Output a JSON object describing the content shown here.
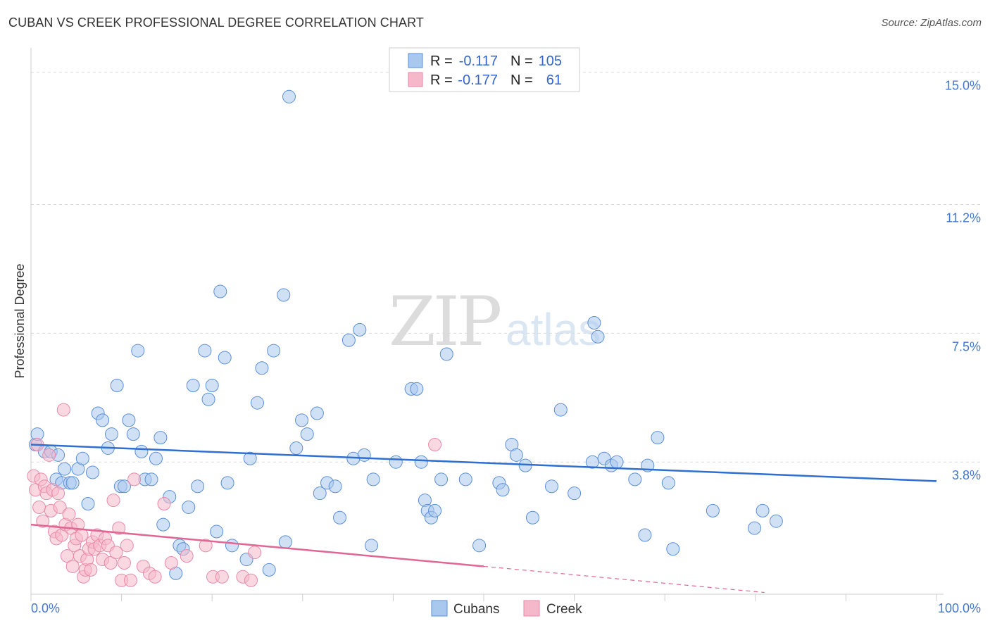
{
  "title": "CUBAN VS CREEK PROFESSIONAL DEGREE CORRELATION CHART",
  "source": "Source: ZipAtlas.com",
  "watermark": {
    "zip": "ZIP",
    "atlas": "atlas"
  },
  "colors": {
    "cubans_fill": "#a9c8ee",
    "cubans_stroke": "#5b8fd6",
    "cubans_line": "#2e6fd1",
    "creek_fill": "#f5b8cb",
    "creek_stroke": "#e889a8",
    "creek_line": "#e06693",
    "axis_label": "#4477cc",
    "grid": "#d9d9d9"
  },
  "legend": {
    "cubans": {
      "r_label": "R =",
      "r_value": "-0.117",
      "n_label": "N =",
      "n_value": "105"
    },
    "creek": {
      "r_label": "R =",
      "r_value": "-0.177",
      "n_label": "N =",
      "n_value": "61"
    }
  },
  "bottom_legend": {
    "cubans": "Cubans",
    "creek": "Creek"
  },
  "chart_data": {
    "type": "scatter",
    "title": "CUBAN VS CREEK PROFESSIONAL DEGREE CORRELATION CHART",
    "xlabel": "",
    "ylabel": "Professional Degree",
    "xlim": [
      0,
      100
    ],
    "ylim": [
      0,
      15.5
    ],
    "x_tick_labels": [
      "0.0%",
      "100.0%"
    ],
    "y_ticks": [
      3.8,
      7.5,
      11.2,
      15.0
    ],
    "y_tick_labels": [
      "3.8%",
      "7.5%",
      "11.2%",
      "15.0%"
    ],
    "series": [
      {
        "name": "Cubans",
        "trend": {
          "x": [
            0,
            100
          ],
          "y": [
            4.3,
            3.25
          ]
        },
        "points": [
          [
            0.5,
            4.3
          ],
          [
            0.7,
            4.6
          ],
          [
            1.5,
            4.1
          ],
          [
            2.2,
            4.1
          ],
          [
            2.8,
            3.3
          ],
          [
            3.0,
            4.0
          ],
          [
            3.4,
            3.2
          ],
          [
            3.7,
            3.6
          ],
          [
            4.3,
            3.2
          ],
          [
            4.6,
            3.2
          ],
          [
            5.2,
            3.6
          ],
          [
            5.7,
            3.9
          ],
          [
            6.3,
            2.6
          ],
          [
            6.8,
            3.5
          ],
          [
            7.4,
            5.2
          ],
          [
            7.9,
            5.0
          ],
          [
            8.5,
            4.2
          ],
          [
            8.9,
            4.6
          ],
          [
            9.5,
            6.0
          ],
          [
            9.9,
            3.1
          ],
          [
            10.3,
            3.1
          ],
          [
            10.8,
            5.0
          ],
          [
            11.3,
            4.6
          ],
          [
            11.8,
            7.0
          ],
          [
            12.2,
            4.1
          ],
          [
            12.6,
            3.3
          ],
          [
            13.3,
            3.3
          ],
          [
            13.8,
            3.9
          ],
          [
            14.3,
            4.5
          ],
          [
            14.6,
            2.0
          ],
          [
            15.3,
            2.8
          ],
          [
            16.0,
            0.6
          ],
          [
            16.4,
            1.4
          ],
          [
            16.8,
            1.3
          ],
          [
            17.4,
            2.5
          ],
          [
            17.9,
            6.0
          ],
          [
            18.4,
            3.1
          ],
          [
            19.2,
            7.0
          ],
          [
            19.6,
            5.6
          ],
          [
            20.0,
            6.0
          ],
          [
            20.5,
            1.8
          ],
          [
            20.9,
            8.7
          ],
          [
            21.4,
            6.8
          ],
          [
            21.7,
            3.2
          ],
          [
            22.2,
            1.4
          ],
          [
            23.8,
            1.0
          ],
          [
            24.2,
            3.9
          ],
          [
            25.0,
            5.5
          ],
          [
            25.5,
            6.5
          ],
          [
            26.3,
            0.7
          ],
          [
            26.8,
            7.0
          ],
          [
            27.9,
            8.6
          ],
          [
            28.1,
            1.5
          ],
          [
            28.5,
            14.3
          ],
          [
            29.3,
            4.2
          ],
          [
            29.9,
            5.0
          ],
          [
            30.5,
            4.6
          ],
          [
            31.6,
            5.2
          ],
          [
            31.9,
            2.9
          ],
          [
            32.7,
            3.2
          ],
          [
            33.6,
            3.1
          ],
          [
            34.1,
            2.2
          ],
          [
            35.1,
            7.3
          ],
          [
            35.6,
            3.9
          ],
          [
            36.3,
            7.6
          ],
          [
            36.8,
            4.0
          ],
          [
            37.6,
            1.4
          ],
          [
            37.8,
            3.3
          ],
          [
            40.3,
            3.8
          ],
          [
            42.0,
            5.9
          ],
          [
            42.6,
            5.9
          ],
          [
            43.1,
            3.8
          ],
          [
            43.5,
            2.7
          ],
          [
            43.8,
            2.4
          ],
          [
            44.2,
            2.2
          ],
          [
            44.6,
            2.4
          ],
          [
            45.3,
            3.3
          ],
          [
            45.9,
            6.9
          ],
          [
            48.0,
            3.3
          ],
          [
            49.5,
            1.4
          ],
          [
            51.7,
            3.2
          ],
          [
            52.1,
            3.0
          ],
          [
            53.1,
            4.3
          ],
          [
            53.6,
            4.0
          ],
          [
            54.6,
            3.7
          ],
          [
            55.4,
            2.2
          ],
          [
            57.5,
            3.1
          ],
          [
            58.5,
            5.3
          ],
          [
            60.0,
            2.9
          ],
          [
            62.0,
            3.8
          ],
          [
            62.2,
            7.8
          ],
          [
            62.6,
            7.4
          ],
          [
            63.3,
            3.9
          ],
          [
            64.1,
            3.7
          ],
          [
            64.7,
            3.8
          ],
          [
            66.7,
            3.3
          ],
          [
            67.8,
            1.7
          ],
          [
            68.1,
            3.7
          ],
          [
            69.2,
            4.5
          ],
          [
            70.4,
            3.2
          ],
          [
            70.9,
            1.3
          ],
          [
            75.3,
            2.4
          ],
          [
            79.9,
            1.9
          ],
          [
            80.8,
            2.4
          ],
          [
            82.3,
            2.1
          ]
        ]
      },
      {
        "name": "Creek",
        "trend": {
          "x": [
            0,
            50
          ],
          "y": [
            2.0,
            0.8
          ]
        },
        "trend_dashed": {
          "x": [
            50,
            81
          ],
          "y": [
            0.8,
            0.05
          ]
        },
        "points": [
          [
            0.3,
            3.4
          ],
          [
            0.5,
            3.0
          ],
          [
            0.7,
            4.3
          ],
          [
            0.9,
            2.5
          ],
          [
            1.1,
            3.3
          ],
          [
            1.3,
            2.1
          ],
          [
            1.5,
            3.1
          ],
          [
            1.7,
            2.9
          ],
          [
            2.0,
            4.0
          ],
          [
            2.2,
            2.4
          ],
          [
            2.4,
            3.0
          ],
          [
            2.6,
            1.8
          ],
          [
            2.8,
            1.6
          ],
          [
            3.0,
            2.9
          ],
          [
            3.2,
            2.5
          ],
          [
            3.4,
            1.7
          ],
          [
            3.6,
            5.3
          ],
          [
            3.8,
            2.0
          ],
          [
            4.0,
            1.1
          ],
          [
            4.2,
            2.3
          ],
          [
            4.4,
            1.9
          ],
          [
            4.6,
            0.8
          ],
          [
            4.8,
            1.4
          ],
          [
            5.0,
            1.6
          ],
          [
            5.2,
            2.0
          ],
          [
            5.4,
            1.1
          ],
          [
            5.6,
            1.7
          ],
          [
            5.8,
            0.5
          ],
          [
            6.0,
            0.7
          ],
          [
            6.2,
            1.0
          ],
          [
            6.4,
            1.3
          ],
          [
            6.6,
            0.7
          ],
          [
            6.8,
            1.5
          ],
          [
            7.0,
            1.3
          ],
          [
            7.3,
            1.7
          ],
          [
            7.6,
            1.4
          ],
          [
            7.9,
            1.0
          ],
          [
            8.2,
            1.6
          ],
          [
            8.5,
            1.4
          ],
          [
            8.8,
            0.9
          ],
          [
            9.1,
            2.7
          ],
          [
            9.4,
            1.2
          ],
          [
            9.7,
            1.9
          ],
          [
            10.0,
            0.4
          ],
          [
            10.3,
            0.9
          ],
          [
            10.6,
            1.4
          ],
          [
            11.0,
            0.4
          ],
          [
            11.4,
            3.3
          ],
          [
            12.4,
            0.8
          ],
          [
            13.1,
            0.6
          ],
          [
            13.7,
            0.5
          ],
          [
            14.7,
            2.6
          ],
          [
            15.5,
            0.9
          ],
          [
            17.2,
            1.1
          ],
          [
            19.3,
            1.4
          ],
          [
            20.1,
            0.5
          ],
          [
            21.1,
            0.5
          ],
          [
            23.4,
            0.5
          ],
          [
            24.3,
            0.4
          ],
          [
            24.7,
            1.2
          ],
          [
            44.6,
            4.3
          ]
        ]
      }
    ]
  }
}
